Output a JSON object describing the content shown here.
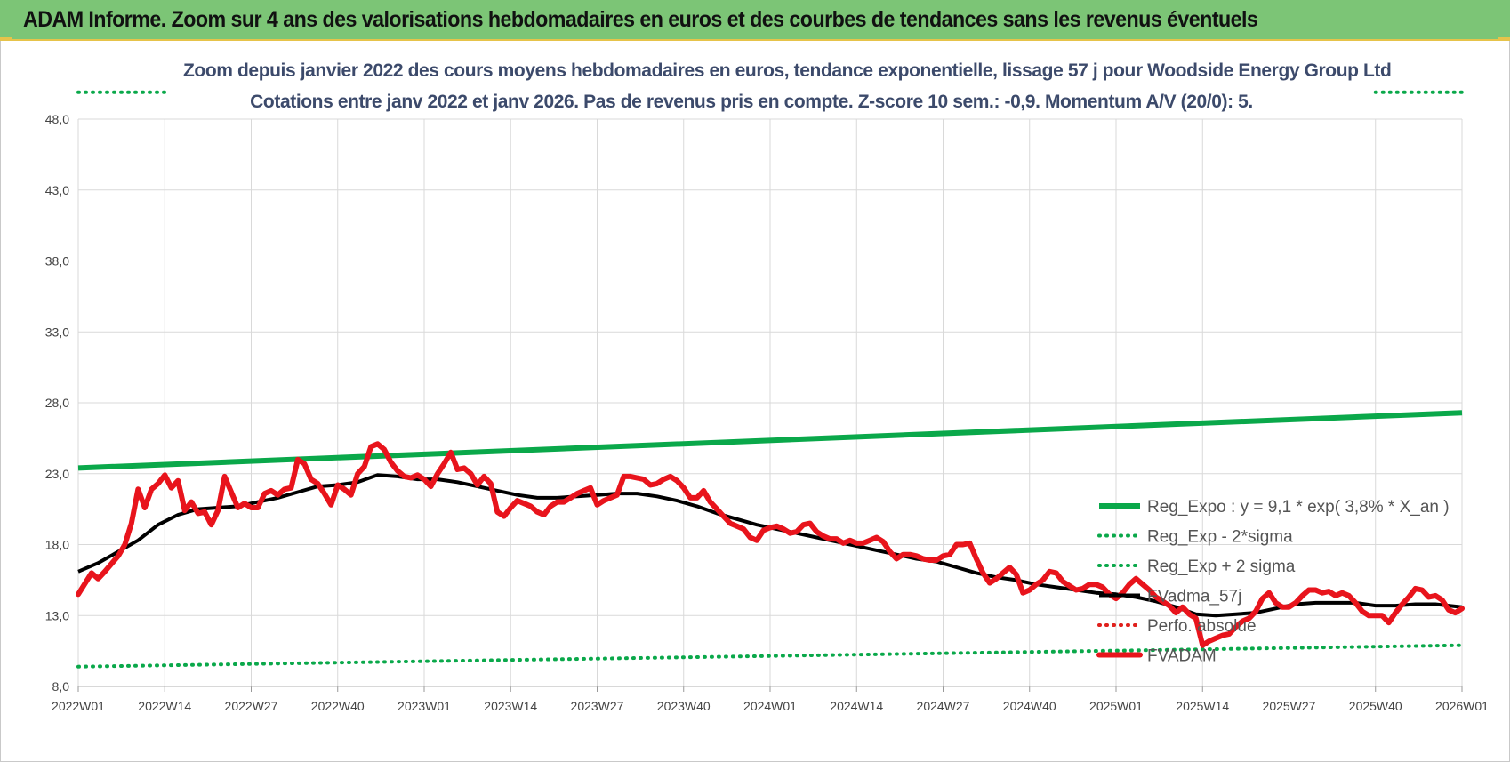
{
  "banner": {
    "title": "ADAM Informe. Zoom sur 4 ans des valorisations hebdomadaires en euros et des courbes de tendances sans les revenus éventuels"
  },
  "chart_data": {
    "type": "line",
    "title_line1": "Zoom depuis janvier 2022 des cours moyens hebdomadaires en euros, tendance exponentielle, lissage 57 j pour Woodside Energy Group Ltd",
    "title_line2": "Cotations entre janv 2022 et janv 2026. Pas de revenus pris en compte. Z-score 10 sem.: -0,9. Momentum A/V (20/0): 5.",
    "ylim": [
      8.0,
      48.0
    ],
    "yticks": [
      "8,0",
      "13,0",
      "18,0",
      "23,0",
      "28,0",
      "33,0",
      "38,0",
      "43,0",
      "48,0"
    ],
    "ytick_values": [
      8,
      13,
      18,
      23,
      28,
      33,
      38,
      43,
      48
    ],
    "xlim": [
      0,
      208
    ],
    "xticks": [
      "2022W01",
      "2022W14",
      "2022W27",
      "2022W40",
      "2023W01",
      "2023W14",
      "2023W27",
      "2023W40",
      "2024W01",
      "2024W14",
      "2024W27",
      "2024W40",
      "2025W01",
      "2025W14",
      "2025W27",
      "2025W40",
      "2026W01"
    ],
    "xtick_positions": [
      0,
      13,
      26,
      39,
      52,
      65,
      78,
      91,
      104,
      117,
      130,
      143,
      156,
      169,
      182,
      195,
      208
    ],
    "grid": true,
    "legend_position": "right",
    "legend": [
      {
        "label": "Reg_Expo : y = 9,1 * exp( 3,8% *  X_an )",
        "series": "reg_expo"
      },
      {
        "label": "Reg_Exp - 2*sigma",
        "series": "reg_minus"
      },
      {
        "label": "Reg_Exp + 2 sigma",
        "series": "reg_plus"
      },
      {
        "label": "FVadma_57j",
        "series": "fvadma"
      },
      {
        "label": "Perfo. absolue",
        "series": "perfo"
      },
      {
        "label": "FVADAM",
        "series": "fvadam"
      }
    ],
    "series": [
      {
        "name": "Reg_Expo",
        "key": "reg_expo",
        "color": "#0aa84a",
        "style": "solid",
        "x": [
          0,
          208
        ],
        "values": [
          23.4,
          27.3
        ]
      },
      {
        "name": "Reg_Exp - 2*sigma",
        "key": "reg_minus",
        "color": "#0aa84a",
        "style": "dotted",
        "x": [
          0,
          208
        ],
        "values": [
          9.4,
          10.9
        ]
      },
      {
        "name": "Reg_Exp + 2 sigma",
        "key": "reg_plus",
        "color": "#0aa84a",
        "style": "dotted",
        "x": [
          0,
          13,
          195,
          208
        ],
        "values": [
          49.9,
          49.9,
          49.9,
          49.9
        ]
      },
      {
        "name": "FVadma_57j",
        "key": "fvadma",
        "color": "#000000",
        "style": "solid",
        "x": [
          0,
          3,
          6,
          9,
          12,
          15,
          18,
          21,
          24,
          27,
          30,
          33,
          36,
          39,
          42,
          45,
          48,
          51,
          54,
          57,
          60,
          63,
          66,
          69,
          72,
          75,
          78,
          81,
          84,
          87,
          90,
          93,
          96,
          99,
          102,
          105,
          108,
          111,
          114,
          117,
          120,
          123,
          126,
          129,
          132,
          135,
          138,
          141,
          144,
          147,
          150,
          153,
          156,
          159,
          162,
          165,
          168,
          171,
          174,
          177,
          180,
          183,
          186,
          189,
          192,
          195,
          198,
          201,
          204,
          208
        ],
        "values": [
          16.1,
          16.7,
          17.5,
          18.3,
          19.4,
          20.1,
          20.5,
          20.6,
          20.7,
          21.0,
          21.3,
          21.7,
          22.1,
          22.2,
          22.4,
          22.9,
          22.8,
          22.6,
          22.6,
          22.4,
          22.1,
          21.8,
          21.5,
          21.3,
          21.3,
          21.4,
          21.5,
          21.6,
          21.6,
          21.4,
          21.1,
          20.7,
          20.2,
          19.8,
          19.4,
          19.1,
          18.8,
          18.5,
          18.2,
          17.9,
          17.6,
          17.3,
          17.0,
          16.8,
          16.4,
          16.0,
          15.7,
          15.5,
          15.2,
          15.0,
          14.8,
          14.6,
          14.5,
          14.3,
          14.0,
          13.6,
          13.1,
          13.0,
          13.1,
          13.2,
          13.5,
          13.8,
          13.9,
          13.9,
          13.9,
          13.7,
          13.7,
          13.8,
          13.8,
          13.6
        ]
      },
      {
        "name": "Perfo. absolue",
        "key": "perfo",
        "color": "#e0201c",
        "style": "dotted",
        "x": [],
        "values": []
      },
      {
        "name": "FVADAM",
        "key": "fvadam",
        "color": "#e8141c",
        "style": "solid",
        "x": [
          0,
          2,
          3,
          4,
          6,
          7,
          8,
          9,
          10,
          11,
          12,
          13,
          14,
          15,
          16,
          17,
          18,
          19,
          20,
          21,
          22,
          23,
          24,
          25,
          26,
          27,
          28,
          29,
          30,
          31,
          32,
          33,
          34,
          35,
          36,
          37,
          38,
          39,
          40,
          41,
          42,
          43,
          44,
          45,
          46,
          47,
          48,
          49,
          50,
          51,
          52,
          53,
          54,
          55,
          56,
          57,
          58,
          59,
          60,
          61,
          62,
          63,
          64,
          65,
          66,
          67,
          68,
          69,
          70,
          71,
          72,
          73,
          74,
          75,
          76,
          77,
          78,
          79,
          80,
          81,
          82,
          83,
          84,
          85,
          86,
          87,
          88,
          89,
          90,
          91,
          92,
          93,
          94,
          95,
          96,
          97,
          98,
          99,
          100,
          101,
          102,
          103,
          104,
          105,
          106,
          107,
          108,
          109,
          110,
          111,
          112,
          113,
          114,
          115,
          116,
          117,
          118,
          119,
          120,
          121,
          122,
          123,
          124,
          125,
          126,
          127,
          128,
          129,
          130,
          131,
          132,
          133,
          134,
          135,
          136,
          137,
          138,
          139,
          140,
          141,
          142,
          143,
          144,
          145,
          146,
          147,
          148,
          149,
          150,
          151,
          152,
          153,
          154,
          155,
          156,
          157,
          158,
          159,
          160,
          161,
          162,
          163,
          164,
          165,
          166,
          167,
          168,
          169,
          170,
          171,
          172,
          173,
          174,
          175,
          176,
          177,
          178,
          179,
          180,
          181,
          182,
          183,
          184,
          185,
          186,
          187,
          188,
          189,
          190,
          191,
          192,
          193,
          194,
          195,
          196,
          197,
          198,
          199,
          200,
          201,
          202,
          203,
          204,
          205,
          206,
          207,
          208
        ],
        "values": [
          14.5,
          16.0,
          15.6,
          16.1,
          17.2,
          18.0,
          19.5,
          21.9,
          20.6,
          21.9,
          22.3,
          22.9,
          22.0,
          22.5,
          20.4,
          21.0,
          20.2,
          20.3,
          19.4,
          20.4,
          22.8,
          21.7,
          20.6,
          20.9,
          20.6,
          20.6,
          21.6,
          21.8,
          21.5,
          21.9,
          22.0,
          24.0,
          23.7,
          22.6,
          22.3,
          21.6,
          20.8,
          22.2,
          21.9,
          21.5,
          23.0,
          23.5,
          24.9,
          25.1,
          24.7,
          23.8,
          23.2,
          22.8,
          22.7,
          22.9,
          22.6,
          22.1,
          23.0,
          23.7,
          24.5,
          23.3,
          23.4,
          23.0,
          22.2,
          22.8,
          22.3,
          20.3,
          20.0,
          20.6,
          21.1,
          20.9,
          20.7,
          20.3,
          20.1,
          20.7,
          21.0,
          21.0,
          21.3,
          21.6,
          21.8,
          22.0,
          20.8,
          21.1,
          21.3,
          21.5,
          22.8,
          22.8,
          22.7,
          22.6,
          22.2,
          22.3,
          22.6,
          22.8,
          22.5,
          22.0,
          21.3,
          21.3,
          21.8,
          21.0,
          20.5,
          20.0,
          19.5,
          19.3,
          19.1,
          18.5,
          18.3,
          19.0,
          19.2,
          19.3,
          19.1,
          18.8,
          18.9,
          19.4,
          19.5,
          18.9,
          18.6,
          18.4,
          18.4,
          18.1,
          18.3,
          18.1,
          18.1,
          18.3,
          18.5,
          18.2,
          17.5,
          17.0,
          17.3,
          17.3,
          17.2,
          17.0,
          16.9,
          16.9,
          17.2,
          17.3,
          18.0,
          18.0,
          18.1,
          17.0,
          16.0,
          15.3,
          15.6,
          16.0,
          16.4,
          15.9,
          14.6,
          14.8,
          15.2,
          15.5,
          16.1,
          16.0,
          15.4,
          15.1,
          14.8,
          14.9,
          15.2,
          15.2,
          15.0,
          14.5,
          14.2,
          14.6,
          15.2,
          15.6,
          15.2,
          14.8,
          14.3,
          14.0,
          13.7,
          13.2,
          13.6,
          13.1,
          12.8,
          10.9,
          11.2,
          11.4,
          11.6,
          11.7,
          12.2,
          12.6,
          12.8,
          13.3,
          14.2,
          14.6,
          13.9,
          13.6,
          13.6,
          13.9,
          14.4,
          14.8,
          14.8,
          14.6,
          14.7,
          14.4,
          14.6,
          14.4,
          13.9,
          13.3,
          13.0,
          13.0,
          13.0,
          12.5,
          13.2,
          13.8,
          14.3,
          14.9,
          14.8,
          14.3,
          14.4,
          14.1,
          13.4,
          13.2,
          13.5
        ]
      }
    ]
  }
}
